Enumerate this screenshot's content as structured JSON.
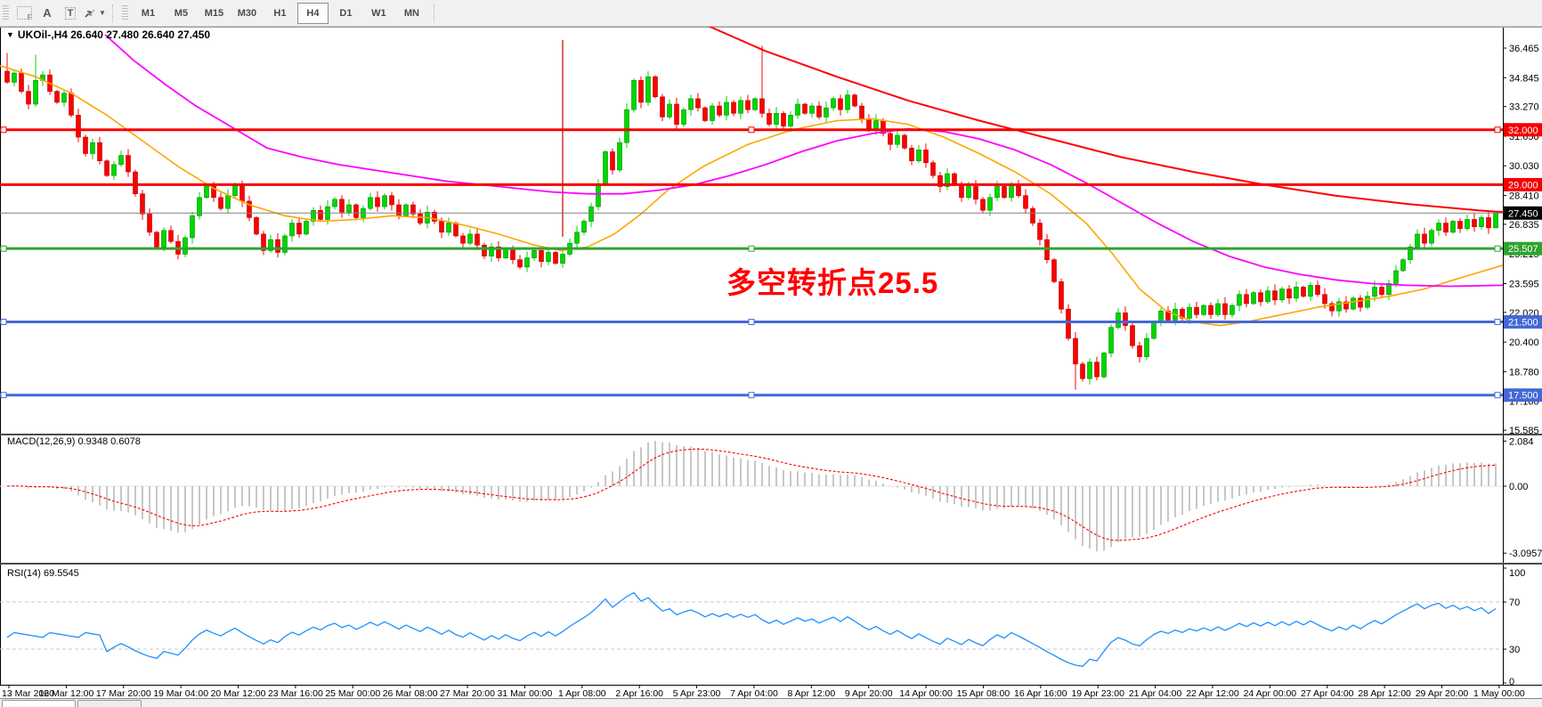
{
  "toolbar": {
    "tool_icons": [
      {
        "name": "chart-foreground-icon",
        "glyph": "F"
      },
      {
        "name": "text-label-icon",
        "glyph": "A"
      },
      {
        "name": "text-box-icon",
        "glyph": "T"
      }
    ],
    "timeframes": [
      "M1",
      "M5",
      "M15",
      "M30",
      "H1",
      "H4",
      "D1",
      "W1",
      "MN"
    ],
    "active_timeframe": "H4"
  },
  "chart": {
    "title": "UKOil-,H4  26.640 27.480 26.640 27.450",
    "symbol": "UKOil-",
    "period": "H4",
    "open": "26.640",
    "high": "27.480",
    "low": "26.640",
    "close": "27.450",
    "annotation": {
      "text": "多空转折点25.5",
      "color": "#FF0000"
    },
    "current_price_label": "27.450",
    "axis_labels": [
      "36.465",
      "34.845",
      "33.270",
      "31.650",
      "30.030",
      "28.410",
      "26.835",
      "25.215",
      "23.595",
      "22.020",
      "20.400",
      "18.780",
      "17.160",
      "15.585"
    ],
    "hlines": [
      {
        "label": "32.000",
        "value": 32.0,
        "color": "#F40000",
        "handles": true
      },
      {
        "label": "29.000",
        "value": 29.0,
        "color": "#F40000",
        "handles": false
      },
      {
        "label": "25.507",
        "value": 25.507,
        "color": "#2FA32F",
        "handles": true
      },
      {
        "label": "21.500",
        "value": 21.5,
        "color": "#4468D8",
        "handles": true
      },
      {
        "label": "17.500",
        "value": 17.5,
        "color": "#4468D8",
        "handles": true
      }
    ],
    "x_labels": [
      "13 Mar 2020",
      "16 Mar 12:00",
      "17 Mar 20:00",
      "19 Mar 04:00",
      "20 Mar 12:00",
      "23 Mar 16:00",
      "25 Mar 00:00",
      "26 Mar 08:00",
      "27 Mar 20:00",
      "31 Mar 00:00",
      "1 Apr 08:00",
      "2 Apr 16:00",
      "5 Apr 23:00",
      "7 Apr 04:00",
      "8 Apr 12:00",
      "9 Apr 20:00",
      "14 Apr 00:00",
      "15 Apr 08:00",
      "16 Apr 16:00",
      "19 Apr 23:00",
      "21 Apr 04:00",
      "22 Apr 12:00",
      "24 Apr 00:00",
      "27 Apr 04:00",
      "28 Apr 12:00",
      "29 Apr 20:00",
      "1 May 00:00"
    ]
  },
  "macd": {
    "label": "MACD(12,26,9) 0.9348 0.6078",
    "fast": 12,
    "slow": 26,
    "signal_period": 9,
    "main_value": "0.9348",
    "signal_value": "0.6078",
    "axis_labels": [
      {
        "text": "2.084",
        "value": 2.084
      },
      {
        "text": "0.00",
        "value": 0
      },
      {
        "text": "-3.0957",
        "value": -3.0957
      }
    ]
  },
  "rsi": {
    "label": "RSI(14) 69.5545",
    "period": 14,
    "value": "69.5545",
    "axis_labels": [
      {
        "text": "100",
        "value": 100
      },
      {
        "text": "70",
        "value": 70
      },
      {
        "text": "30",
        "value": 30
      },
      {
        "text": "0",
        "value": 0
      }
    ],
    "levels": [
      70,
      30
    ]
  },
  "chart_data": {
    "type": "candlestick",
    "symbol": "UKOil-",
    "timeframe": "H4",
    "price_axis_range": [
      15.585,
      36.465
    ],
    "closes": [
      34.6,
      35.1,
      34.1,
      33.4,
      34.7,
      35.0,
      34.1,
      33.5,
      34.0,
      32.8,
      31.6,
      30.7,
      31.3,
      30.3,
      29.5,
      30.1,
      30.6,
      29.7,
      28.5,
      27.4,
      26.4,
      25.6,
      26.5,
      25.9,
      25.2,
      26.1,
      27.3,
      28.3,
      29.0,
      28.3,
      27.7,
      28.4,
      29.0,
      28.1,
      27.2,
      26.3,
      25.4,
      26.0,
      25.3,
      26.2,
      26.9,
      26.3,
      27.0,
      27.6,
      27.1,
      27.8,
      28.2,
      27.5,
      27.9,
      27.2,
      27.7,
      28.3,
      27.8,
      28.4,
      27.9,
      27.3,
      27.9,
      27.4,
      26.9,
      27.5,
      27.0,
      26.4,
      26.9,
      26.2,
      25.8,
      26.3,
      25.7,
      25.1,
      25.6,
      25.0,
      25.5,
      24.9,
      24.5,
      25.0,
      25.4,
      24.8,
      25.3,
      24.7,
      25.2,
      25.8,
      26.4,
      27.0,
      27.8,
      29.0,
      30.8,
      29.8,
      31.3,
      33.1,
      34.7,
      33.5,
      34.9,
      33.8,
      32.7,
      33.4,
      32.3,
      33.1,
      33.7,
      33.2,
      32.5,
      33.3,
      32.8,
      33.5,
      32.9,
      33.6,
      33.1,
      33.7,
      32.9,
      32.3,
      32.9,
      32.2,
      32.8,
      33.4,
      32.9,
      33.3,
      32.7,
      33.2,
      33.7,
      33.1,
      33.9,
      33.3,
      32.6,
      32.0,
      32.5,
      31.8,
      31.2,
      31.7,
      31.0,
      30.3,
      30.9,
      30.2,
      29.5,
      28.9,
      29.6,
      29.0,
      28.3,
      28.9,
      28.2,
      27.6,
      28.3,
      28.9,
      28.3,
      29.0,
      28.4,
      27.7,
      26.9,
      26.0,
      24.9,
      23.7,
      22.2,
      20.6,
      19.2,
      18.4,
      19.3,
      18.5,
      19.8,
      21.2,
      22.0,
      21.3,
      20.2,
      19.6,
      20.6,
      21.5,
      22.1,
      21.6,
      22.2,
      21.7,
      22.3,
      21.9,
      22.4,
      21.9,
      22.5,
      21.9,
      22.4,
      23.0,
      22.5,
      23.1,
      22.6,
      23.2,
      22.7,
      23.3,
      22.8,
      23.4,
      22.9,
      23.5,
      23.0,
      22.5,
      22.1,
      22.6,
      22.2,
      22.8,
      22.3,
      22.9,
      23.4,
      23.0,
      23.6,
      24.3,
      24.9,
      25.6,
      26.3,
      25.8,
      26.5,
      26.9,
      26.4,
      27.0,
      26.6,
      27.1,
      26.7,
      27.2,
      26.64,
      27.45
    ],
    "first_open": 35.2,
    "wick_overrides": {
      "0": {
        "high": 36.2
      },
      "4": {
        "high": 36.1
      },
      "106": {
        "high": 36.6
      },
      "150": {
        "low": 17.8
      },
      "186": {
        "low": 21.8
      },
      "208": {
        "high": 27.55
      },
      "209": {
        "open": 26.64,
        "high": 27.48,
        "low": 26.64,
        "close": 27.45
      }
    },
    "bull_color": "#00D800",
    "bear_color": "#FF0000",
    "event_vline": {
      "bar": 78,
      "color": "#C00000"
    },
    "overlays": [
      {
        "name": "ma-fast-orange",
        "color": "#FFA500",
        "width": 1.6,
        "points": [
          [
            0,
            35.5
          ],
          [
            40,
            34.9
          ],
          [
            80,
            34.0
          ],
          [
            120,
            32.8
          ],
          [
            160,
            31.4
          ],
          [
            200,
            30.0
          ],
          [
            240,
            28.8
          ],
          [
            280,
            27.9
          ],
          [
            320,
            27.3
          ],
          [
            360,
            27.0
          ],
          [
            400,
            27.1
          ],
          [
            440,
            27.3
          ],
          [
            480,
            27.2
          ],
          [
            520,
            26.8
          ],
          [
            560,
            26.3
          ],
          [
            600,
            25.7
          ],
          [
            630,
            25.4
          ],
          [
            660,
            25.6
          ],
          [
            690,
            26.3
          ],
          [
            720,
            27.4
          ],
          [
            750,
            28.7
          ],
          [
            790,
            30.0
          ],
          [
            840,
            31.2
          ],
          [
            890,
            32.0
          ],
          [
            940,
            32.5
          ],
          [
            980,
            32.6
          ],
          [
            1020,
            32.3
          ],
          [
            1060,
            31.6
          ],
          [
            1100,
            30.7
          ],
          [
            1140,
            29.7
          ],
          [
            1180,
            28.5
          ],
          [
            1220,
            26.9
          ],
          [
            1250,
            25.2
          ],
          [
            1280,
            23.3
          ],
          [
            1310,
            22.1
          ],
          [
            1340,
            21.5
          ],
          [
            1370,
            21.3
          ],
          [
            1400,
            21.5
          ],
          [
            1440,
            21.9
          ],
          [
            1480,
            22.3
          ],
          [
            1520,
            22.6
          ],
          [
            1560,
            22.9
          ],
          [
            1600,
            23.3
          ],
          [
            1640,
            23.9
          ],
          [
            1688,
            24.6
          ]
        ]
      },
      {
        "name": "ma-slow-magenta",
        "color": "#FF00FF",
        "width": 1.8,
        "points": [
          [
            118,
            37.2
          ],
          [
            150,
            35.8
          ],
          [
            185,
            34.5
          ],
          [
            220,
            33.3
          ],
          [
            255,
            32.3
          ],
          [
            300,
            31.0
          ],
          [
            340,
            30.5
          ],
          [
            380,
            30.1
          ],
          [
            420,
            29.8
          ],
          [
            460,
            29.5
          ],
          [
            500,
            29.2
          ],
          [
            540,
            29.0
          ],
          [
            580,
            28.8
          ],
          [
            620,
            28.6
          ],
          [
            660,
            28.5
          ],
          [
            700,
            28.5
          ],
          [
            740,
            28.7
          ],
          [
            780,
            29.0
          ],
          [
            820,
            29.5
          ],
          [
            860,
            30.1
          ],
          [
            900,
            30.8
          ],
          [
            940,
            31.4
          ],
          [
            980,
            31.8
          ],
          [
            1020,
            32.05
          ],
          [
            1060,
            31.9
          ],
          [
            1100,
            31.5
          ],
          [
            1140,
            30.9
          ],
          [
            1180,
            30.1
          ],
          [
            1220,
            29.1
          ],
          [
            1260,
            28.0
          ],
          [
            1300,
            26.9
          ],
          [
            1340,
            25.9
          ],
          [
            1380,
            25.1
          ],
          [
            1420,
            24.5
          ],
          [
            1460,
            24.1
          ],
          [
            1500,
            23.8
          ],
          [
            1540,
            23.6
          ],
          [
            1580,
            23.5
          ],
          [
            1630,
            23.45
          ],
          [
            1688,
            23.5
          ]
        ]
      },
      {
        "name": "trendline-red",
        "color": "#FF0000",
        "width": 2,
        "points": [
          [
            785,
            37.9
          ],
          [
            860,
            36.3
          ],
          [
            940,
            34.9
          ],
          [
            1020,
            33.6
          ],
          [
            1100,
            32.5
          ],
          [
            1180,
            31.5
          ],
          [
            1260,
            30.5
          ],
          [
            1340,
            29.7
          ],
          [
            1420,
            29.0
          ],
          [
            1500,
            28.4
          ],
          [
            1580,
            27.95
          ],
          [
            1660,
            27.6
          ],
          [
            1732,
            27.35
          ]
        ]
      }
    ]
  }
}
